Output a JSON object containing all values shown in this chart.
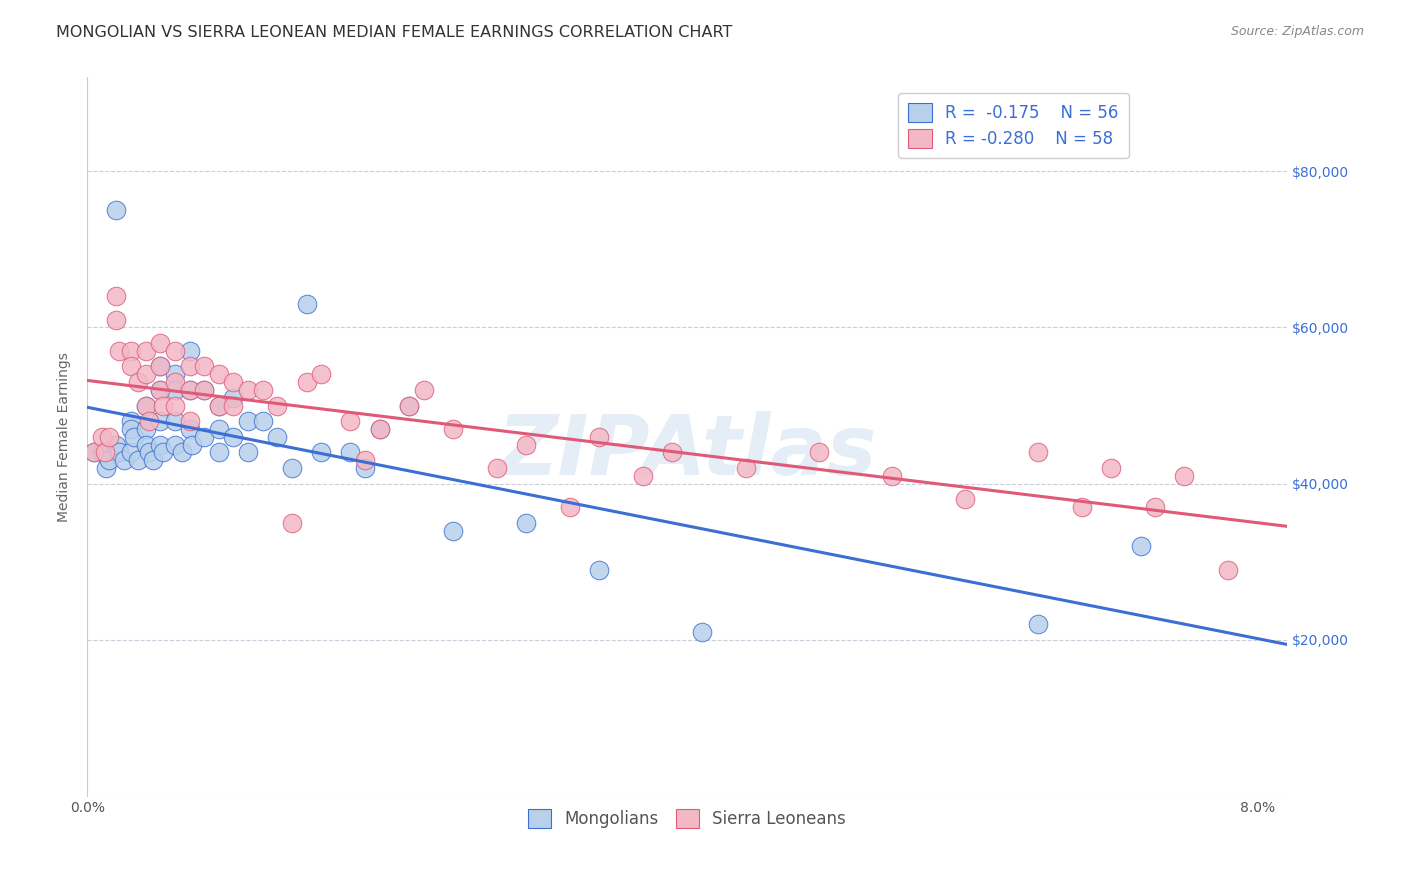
{
  "title": "MONGOLIAN VS SIERRA LEONEAN MEDIAN FEMALE EARNINGS CORRELATION CHART",
  "source": "Source: ZipAtlas.com",
  "ylabel": "Median Female Earnings",
  "xlim": [
    0.0,
    0.082
  ],
  "ylim": [
    0,
    92000
  ],
  "yticks": [
    0,
    20000,
    40000,
    60000,
    80000
  ],
  "ytick_labels_right": [
    "",
    "$20,000",
    "$40,000",
    "$60,000",
    "$80,000"
  ],
  "xticks": [
    0.0,
    0.02,
    0.04,
    0.06,
    0.08
  ],
  "xtick_labels": [
    "0.0%",
    "",
    "",
    "",
    "8.0%"
  ],
  "mongolian_color": "#b8d0ea",
  "sierra_color": "#f2b8c6",
  "line_mongolian": "#3b6fd4",
  "line_sierra": "#e05a78",
  "background_color": "#ffffff",
  "grid_color": "#ccccdd",
  "watermark": "ZIPAtlas",
  "mongolian_x": [
    0.0005,
    0.001,
    0.0013,
    0.0015,
    0.002,
    0.002,
    0.0022,
    0.0025,
    0.003,
    0.003,
    0.003,
    0.0032,
    0.0035,
    0.004,
    0.004,
    0.004,
    0.0042,
    0.0045,
    0.005,
    0.005,
    0.005,
    0.005,
    0.0052,
    0.006,
    0.006,
    0.006,
    0.006,
    0.0065,
    0.007,
    0.007,
    0.007,
    0.0072,
    0.008,
    0.008,
    0.009,
    0.009,
    0.009,
    0.01,
    0.01,
    0.011,
    0.011,
    0.012,
    0.013,
    0.014,
    0.015,
    0.016,
    0.018,
    0.019,
    0.02,
    0.022,
    0.025,
    0.03,
    0.035,
    0.042,
    0.065,
    0.072
  ],
  "mongolian_y": [
    44000,
    44000,
    42000,
    43000,
    75000,
    45000,
    44000,
    43000,
    48000,
    47000,
    44000,
    46000,
    43000,
    50000,
    47000,
    45000,
    44000,
    43000,
    55000,
    52000,
    48000,
    45000,
    44000,
    54000,
    52000,
    48000,
    45000,
    44000,
    57000,
    52000,
    47000,
    45000,
    52000,
    46000,
    50000,
    47000,
    44000,
    51000,
    46000,
    48000,
    44000,
    48000,
    46000,
    42000,
    63000,
    44000,
    44000,
    42000,
    47000,
    50000,
    34000,
    35000,
    29000,
    21000,
    22000,
    32000
  ],
  "sierra_x": [
    0.0005,
    0.001,
    0.0012,
    0.0015,
    0.002,
    0.002,
    0.0022,
    0.003,
    0.003,
    0.0035,
    0.004,
    0.004,
    0.004,
    0.0042,
    0.005,
    0.005,
    0.005,
    0.0052,
    0.006,
    0.006,
    0.006,
    0.007,
    0.007,
    0.007,
    0.008,
    0.008,
    0.009,
    0.009,
    0.01,
    0.01,
    0.011,
    0.012,
    0.013,
    0.014,
    0.015,
    0.016,
    0.018,
    0.019,
    0.02,
    0.022,
    0.023,
    0.025,
    0.028,
    0.03,
    0.033,
    0.035,
    0.038,
    0.04,
    0.045,
    0.05,
    0.055,
    0.06,
    0.065,
    0.068,
    0.07,
    0.073,
    0.075,
    0.078
  ],
  "sierra_y": [
    44000,
    46000,
    44000,
    46000,
    64000,
    61000,
    57000,
    57000,
    55000,
    53000,
    57000,
    54000,
    50000,
    48000,
    58000,
    55000,
    52000,
    50000,
    57000,
    53000,
    50000,
    55000,
    52000,
    48000,
    55000,
    52000,
    54000,
    50000,
    53000,
    50000,
    52000,
    52000,
    50000,
    35000,
    53000,
    54000,
    48000,
    43000,
    47000,
    50000,
    52000,
    47000,
    42000,
    45000,
    37000,
    46000,
    41000,
    44000,
    42000,
    44000,
    41000,
    38000,
    44000,
    37000,
    42000,
    37000,
    41000,
    29000
  ],
  "title_fontsize": 11.5,
  "axis_label_fontsize": 10,
  "tick_fontsize": 10,
  "legend_fontsize": 12
}
